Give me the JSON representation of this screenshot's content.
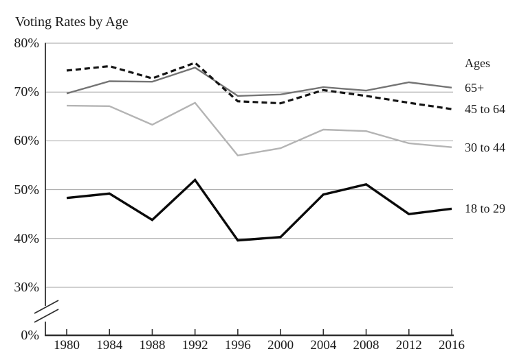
{
  "title": "Voting Rates by Age",
  "legend": {
    "header": "Ages",
    "items": [
      "65+",
      "45 to 64",
      "30 to 44",
      "18 to 29"
    ]
  },
  "colors": {
    "axis": "#2f2f2f",
    "gridline": "#a0a0a0",
    "text": "#1b1b1b"
  },
  "chart_data": {
    "type": "line",
    "title": "Voting Rates by Age",
    "xlabel": "",
    "ylabel": "",
    "x": [
      1980,
      1984,
      1988,
      1992,
      1996,
      2000,
      2004,
      2008,
      2012,
      2016
    ],
    "x_tick_labels": [
      "1980",
      "1984",
      "1988",
      "1992",
      "1996",
      "2000",
      "2004",
      "2008",
      "2012",
      "2016"
    ],
    "y_axis": {
      "tick_labels": [
        "80%",
        "70%",
        "60%",
        "50%",
        "40%",
        "30%",
        "0%"
      ],
      "tick_values": [
        80,
        70,
        60,
        50,
        40,
        30,
        0
      ],
      "display_range": [
        30,
        80
      ],
      "axis_break": true,
      "axis_break_between": [
        0,
        30
      ]
    },
    "grid": "horizontal",
    "legend_position": "right",
    "series": [
      {
        "name": "65+",
        "style": "solid",
        "color": "#747474",
        "width": 2.4,
        "values": [
          69.7,
          72.2,
          72.1,
          75.0,
          69.2,
          69.5,
          71.0,
          70.3,
          72.0,
          70.9
        ]
      },
      {
        "name": "45 to 64",
        "style": "dashed",
        "color": "#141414",
        "width": 3.2,
        "values": [
          74.4,
          75.3,
          72.8,
          76.0,
          68.1,
          67.7,
          70.4,
          69.2,
          67.8,
          66.5
        ]
      },
      {
        "name": "30 to 44",
        "style": "solid",
        "color": "#b4b4b4",
        "width": 2.4,
        "values": [
          67.2,
          67.1,
          63.3,
          67.8,
          57.0,
          58.5,
          62.3,
          62.0,
          59.5,
          58.7
        ]
      },
      {
        "name": "18 to 29",
        "style": "solid",
        "color": "#0a0a0a",
        "width": 3.4,
        "values": [
          48.3,
          49.2,
          43.8,
          52.0,
          39.6,
          40.3,
          49.0,
          51.1,
          45.0,
          46.1
        ]
      }
    ]
  }
}
